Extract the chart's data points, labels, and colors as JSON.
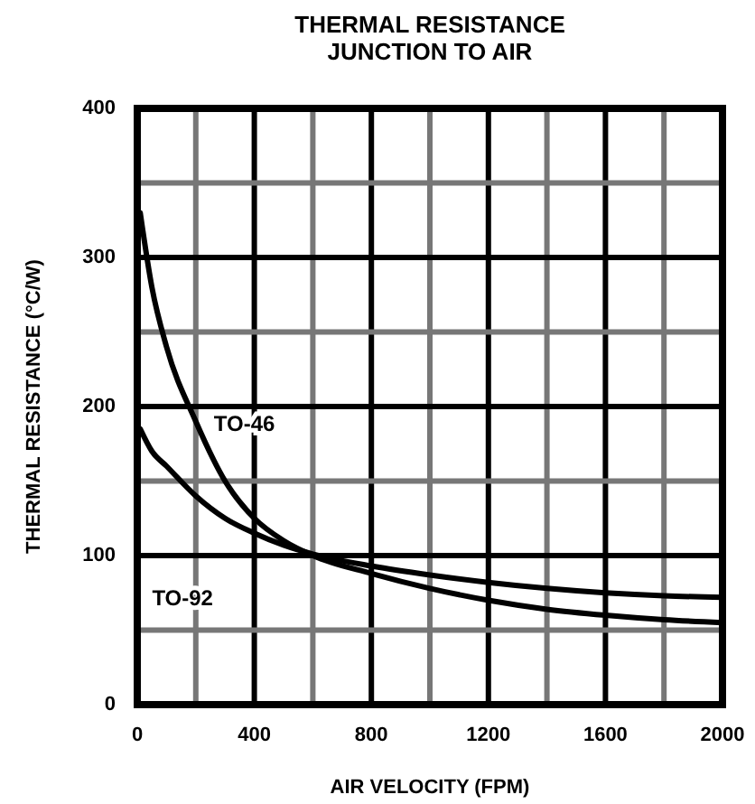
{
  "chart_data": {
    "type": "line",
    "title": "THERMAL RESISTANCE\nJUNCTION TO AIR",
    "xlabel": "AIR VELOCITY (FPM)",
    "ylabel": "THERMAL RESISTANCE (°C/W)",
    "xlim": [
      0,
      2000
    ],
    "ylim": [
      0,
      400
    ],
    "xticks": [
      0,
      {
        "value": 200,
        "label": null
      },
      400,
      {
        "value": 600,
        "label": null
      },
      800,
      {
        "value": 1000,
        "label": null
      },
      1200,
      {
        "value": 1400,
        "label": null
      },
      1600,
      {
        "value": 1800,
        "label": null
      },
      2000
    ],
    "yticks": [
      0,
      {
        "value": 50,
        "label": null
      },
      100,
      {
        "value": 150,
        "label": null
      },
      200,
      {
        "value": 250,
        "label": null
      },
      300,
      {
        "value": 350,
        "label": null
      },
      400
    ],
    "grid": true,
    "marker": "none",
    "line_style": "solid",
    "series": [
      {
        "name": "TO-46",
        "color": "#000000",
        "x": [
          10,
          50,
          100,
          200,
          300,
          400,
          500,
          600,
          800,
          1000,
          1200,
          1400,
          1600,
          1800,
          2000
        ],
        "values": [
          330,
          280,
          240,
          190,
          150,
          125,
          110,
          100,
          88,
          78,
          70,
          64,
          60,
          57,
          55
        ]
      },
      {
        "name": "TO-92",
        "color": "#000000",
        "x": [
          10,
          50,
          100,
          200,
          300,
          400,
          500,
          600,
          800,
          1000,
          1200,
          1400,
          1600,
          1800,
          2000
        ],
        "values": [
          185,
          170,
          160,
          140,
          125,
          115,
          107,
          101,
          93,
          87,
          82,
          78,
          75,
          73,
          72
        ]
      }
    ]
  }
}
